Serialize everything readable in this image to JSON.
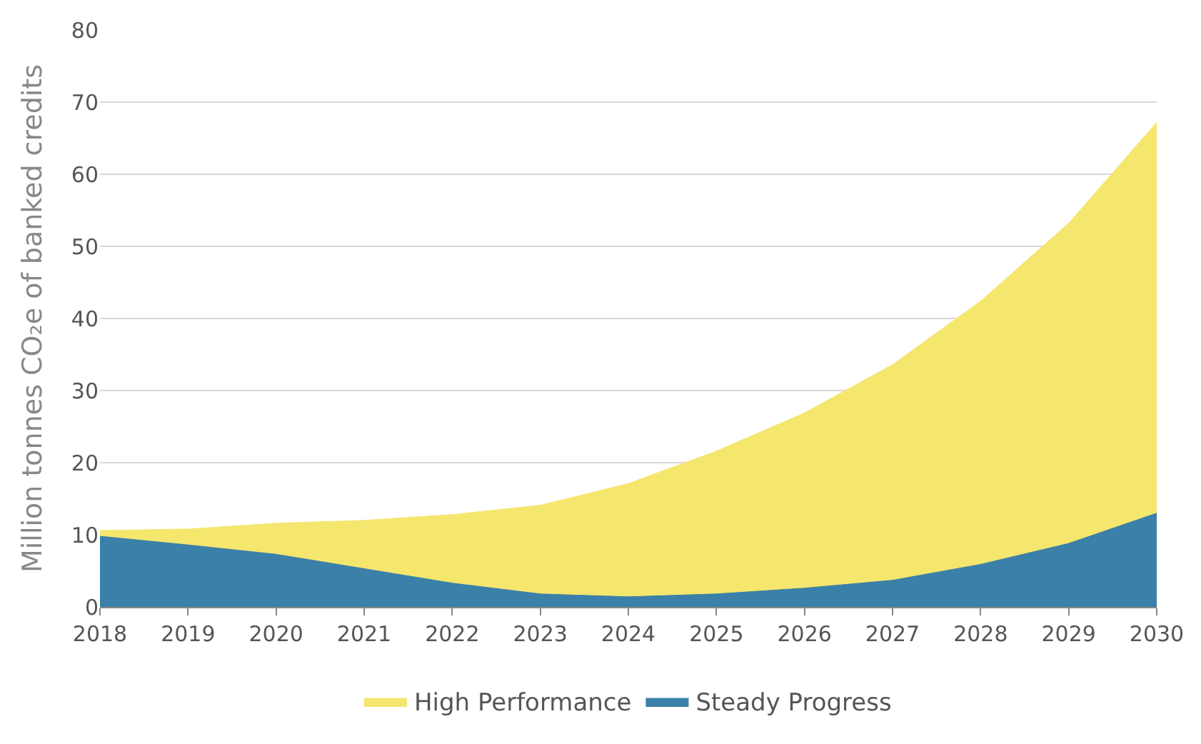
{
  "chart_data": {
    "type": "area",
    "ylabel": "Million tonnes CO₂e of banked credits",
    "x": [
      2018,
      2019,
      2020,
      2021,
      2022,
      2023,
      2024,
      2025,
      2026,
      2027,
      2028,
      2029,
      2030
    ],
    "series": [
      {
        "name": "High Performance",
        "color": "#f5e66e",
        "values": [
          10.6,
          10.8,
          11.6,
          12.0,
          12.8,
          14.1,
          17.1,
          21.6,
          26.9,
          33.6,
          42.4,
          53.2,
          67.2
        ]
      },
      {
        "name": "Steady Progress",
        "color": "#3a80a8",
        "values": [
          9.8,
          8.6,
          7.3,
          5.3,
          3.3,
          1.8,
          1.4,
          1.8,
          2.6,
          3.7,
          5.9,
          8.8,
          13.0
        ]
      }
    ],
    "xlim": [
      2018,
      2030
    ],
    "xticks": [
      2018,
      2019,
      2020,
      2021,
      2022,
      2023,
      2024,
      2025,
      2026,
      2027,
      2028,
      2029,
      2030
    ],
    "ylim": [
      0,
      80
    ],
    "yticks": [
      0,
      10,
      20,
      30,
      40,
      50,
      60,
      70,
      80
    ],
    "grid": "y",
    "legend": "bottom"
  }
}
